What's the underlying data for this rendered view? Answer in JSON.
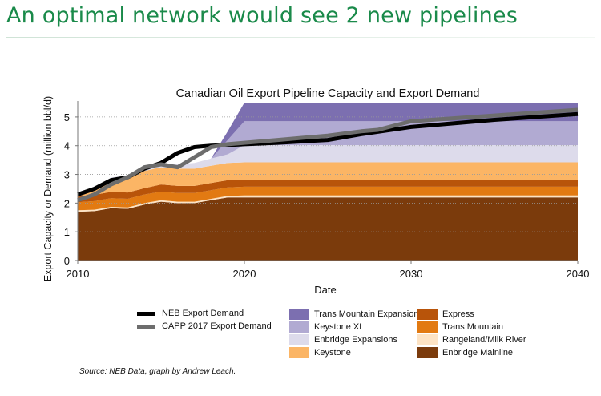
{
  "slide": {
    "title": "An optimal network would see 2 new pipelines"
  },
  "source_note": "Source: NEB Data, graph by Andrew Leach.",
  "chart_data": {
    "type": "area",
    "title": "Canadian Oil Export Pipeline Capacity and Export Demand",
    "xlabel": "Date",
    "ylabel": "Export Capacity or Demand (million bbl/d)",
    "xlim": [
      2010,
      2040
    ],
    "ylim": [
      0,
      5.5
    ],
    "x_ticks": [
      2010,
      2020,
      2030,
      2040
    ],
    "y_ticks": [
      0,
      1,
      2,
      3,
      4,
      5
    ],
    "grid": "horizontal dotted",
    "x": [
      2010,
      2011,
      2012,
      2013,
      2014,
      2015,
      2016,
      2017,
      2018,
      2019,
      2020,
      2025,
      2030,
      2035,
      2040
    ],
    "stacked_series": [
      {
        "name": "Enbridge Mainline",
        "color": "#7b3b0c",
        "values": [
          1.7,
          1.72,
          1.82,
          1.8,
          1.95,
          2.05,
          2.0,
          2.0,
          2.1,
          2.2,
          2.2,
          2.2,
          2.2,
          2.2,
          2.2
        ]
      },
      {
        "name": "Rangeland/Milk River",
        "color": "#fde3c4",
        "values": [
          0.05,
          0.05,
          0.05,
          0.05,
          0.05,
          0.05,
          0.05,
          0.05,
          0.05,
          0.05,
          0.07,
          0.07,
          0.07,
          0.07,
          0.07
        ]
      },
      {
        "name": "Trans Mountain",
        "color": "#e27a12",
        "values": [
          0.28,
          0.3,
          0.3,
          0.3,
          0.3,
          0.3,
          0.3,
          0.3,
          0.3,
          0.3,
          0.3,
          0.3,
          0.3,
          0.3,
          0.3
        ]
      },
      {
        "name": "Express",
        "color": "#b8540a",
        "values": [
          0.2,
          0.22,
          0.22,
          0.22,
          0.22,
          0.25,
          0.25,
          0.25,
          0.25,
          0.25,
          0.25,
          0.25,
          0.25,
          0.25,
          0.25
        ]
      },
      {
        "name": "Keystone",
        "color": "#fbb565",
        "values": [
          0.1,
          0.25,
          0.45,
          0.55,
          0.6,
          0.6,
          0.6,
          0.6,
          0.6,
          0.6,
          0.6,
          0.6,
          0.6,
          0.6,
          0.6
        ]
      },
      {
        "name": "Enbridge Expansions",
        "color": "#dddbeb",
        "values": [
          0,
          0,
          0.05,
          0.05,
          0.1,
          0.1,
          0.15,
          0.2,
          0.25,
          0.3,
          0.6,
          0.6,
          0.6,
          0.6,
          0.6
        ]
      },
      {
        "name": "Keystone XL",
        "color": "#b1aad2",
        "values": [
          0,
          0,
          0,
          0,
          0,
          0,
          0,
          0,
          0,
          0.5,
          0.83,
          0.83,
          0.83,
          0.83,
          0.83
        ]
      },
      {
        "name": "Trans Mountain Expansion",
        "color": "#7c6fb0",
        "values": [
          0,
          0,
          0,
          0,
          0,
          0,
          0,
          0,
          0,
          0.3,
          0.65,
          0.65,
          0.65,
          0.65,
          0.65
        ]
      }
    ],
    "lines": [
      {
        "name": "NEB Export Demand",
        "color": "#000000",
        "x": [
          2010,
          2011,
          2012,
          2013,
          2014,
          2015,
          2016,
          2017,
          2018,
          2019,
          2020,
          2022,
          2025,
          2027,
          2030,
          2035,
          2040
        ],
        "values": [
          2.3,
          2.5,
          2.8,
          2.9,
          3.2,
          3.4,
          3.75,
          3.95,
          4.0,
          4.02,
          4.05,
          4.1,
          4.2,
          4.4,
          4.65,
          4.9,
          5.1
        ]
      },
      {
        "name": "CAPP 2017 Export Demand",
        "color": "#6d6d6d",
        "x": [
          2010,
          2011,
          2012,
          2013,
          2014,
          2015,
          2016,
          2017,
          2018,
          2019,
          2020,
          2022,
          2025,
          2027,
          2028,
          2030,
          2035,
          2040
        ],
        "values": [
          2.1,
          2.3,
          2.65,
          2.9,
          3.25,
          3.35,
          3.25,
          3.6,
          3.95,
          4.05,
          4.1,
          4.2,
          4.35,
          4.5,
          4.55,
          4.85,
          5.05,
          5.25
        ]
      }
    ],
    "legend": {
      "placement": "bottom",
      "column1": [
        "NEB Export Demand",
        "CAPP 2017 Export Demand"
      ],
      "column2": [
        "Trans Mountain Expansion",
        "Keystone XL",
        "Enbridge Expansions",
        "Keystone"
      ],
      "column3": [
        "Express",
        "Trans Mountain",
        "Rangeland/Milk River",
        "Enbridge Mainline"
      ]
    }
  }
}
